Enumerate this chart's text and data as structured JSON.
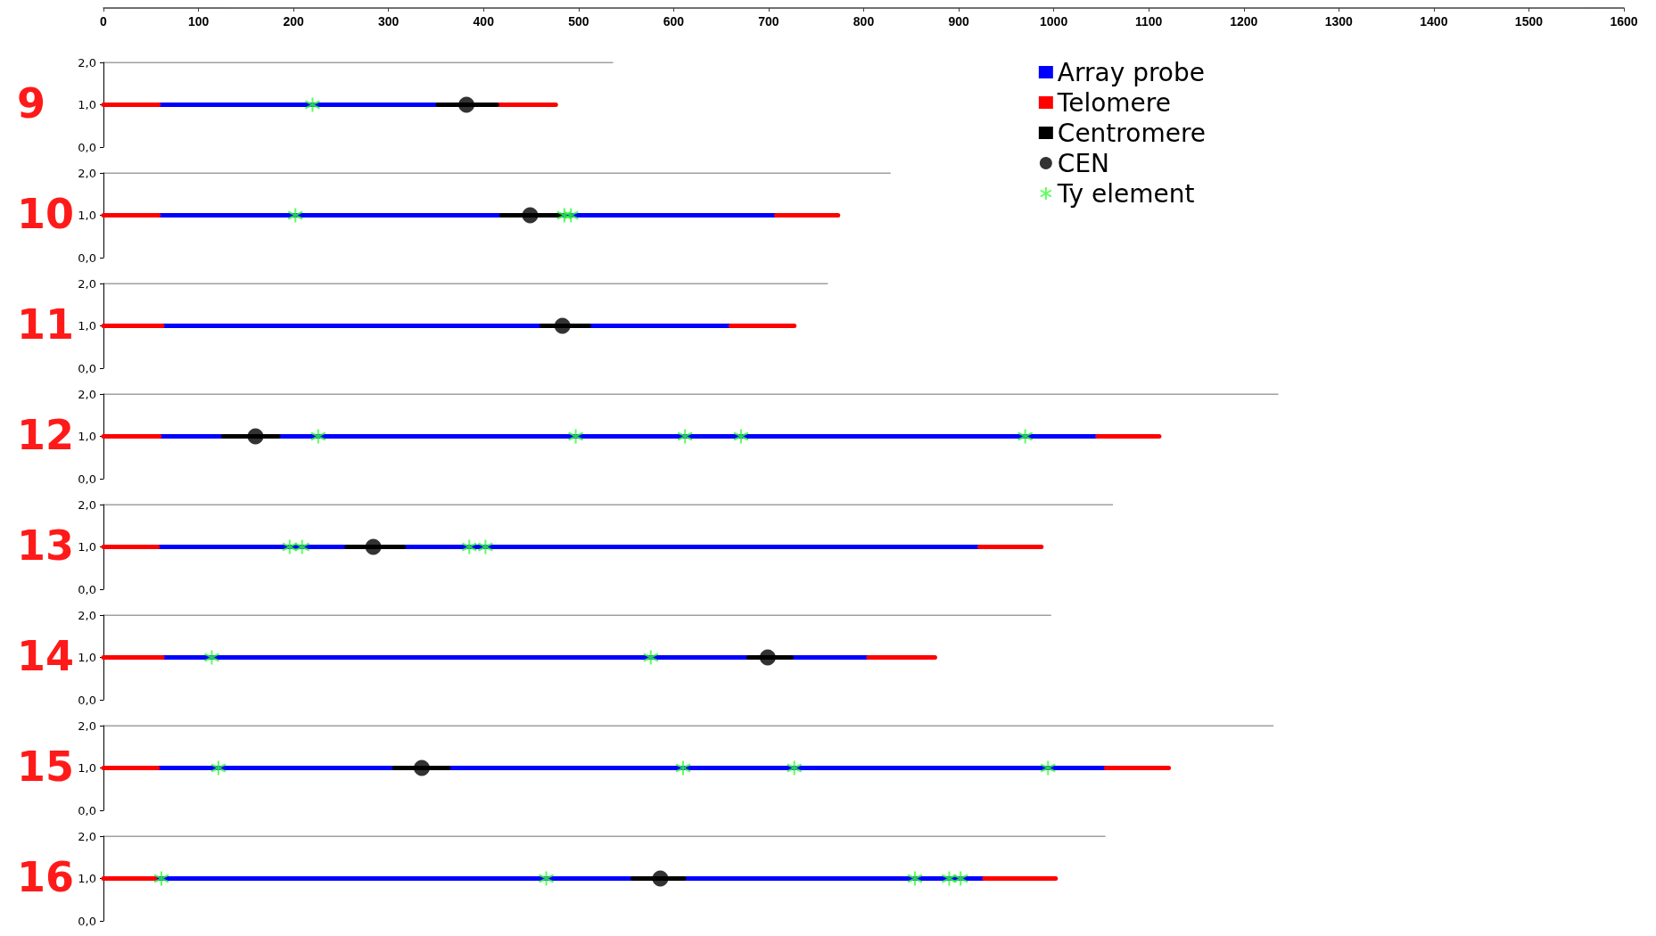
{
  "chart_data": [
    {
      "type": "line",
      "title": "9",
      "xlim": [
        0,
        1600
      ],
      "xticks": [
        0,
        100,
        200,
        300,
        400,
        500,
        600,
        700,
        800,
        900,
        1000,
        1100,
        1200,
        1300,
        1400,
        1500,
        1600
      ],
      "ylim": [
        0,
        2
      ],
      "yticks": [
        {
          "value": 0,
          "label": "0,0"
        },
        {
          "value": 1,
          "label": "1,0"
        },
        {
          "value": 2,
          "label": "2,0"
        }
      ],
      "grid": false,
      "legend": "bottom right",
      "marker": "none",
      "series": [
        {
          "name": "Array probe",
          "color": "#0000ff",
          "x": [
            58,
            352
          ],
          "values": [
            1,
            1
          ]
        },
        {
          "name": "Telomere",
          "color": "#ff0000",
          "x": [
            0,
            58
          ],
          "values": [
            1,
            1
          ]
        },
        {
          "color": "#ff0000",
          "x": [
            414,
            476
          ],
          "values": [
            1,
            1
          ]
        },
        {
          "name": "Centromere",
          "color": "#000000",
          "x": [
            352,
            414
          ],
          "values": [
            1,
            1
          ]
        },
        {
          "name": "CEN",
          "type": "scatter",
          "marker": "circle",
          "color": "#000000",
          "x": [
            382
          ],
          "values": [
            1
          ]
        },
        {
          "name": "Ty element",
          "type": "scatter",
          "marker": "cross",
          "color": "#33ff33",
          "x": [
            220
          ],
          "values": [
            1
          ]
        },
        {
          "color": "#404040",
          "x": [
            0,
            536
          ],
          "values": [
            2,
            2
          ]
        }
      ]
    },
    {
      "type": "line",
      "title": "10",
      "xlim": [
        0,
        1600
      ],
      "xticks": [
        0,
        100,
        200,
        300,
        400,
        500,
        600,
        700,
        800,
        900,
        1000,
        1100,
        1200,
        1300,
        1400,
        1500,
        1600
      ],
      "ylim": [
        0,
        2
      ],
      "yticks": [
        {
          "value": 0,
          "label": "0,0"
        },
        {
          "value": 1,
          "label": "1,0"
        },
        {
          "value": 2,
          "label": "2,0"
        }
      ],
      "tick_labels": "y",
      "grid": false,
      "marker": "none",
      "series": [
        {
          "color": "#0000ff",
          "x": [
            58,
            419
          ],
          "values": [
            1,
            1
          ]
        },
        {
          "color": "#0000ff",
          "x": [
            480,
            708
          ],
          "values": [
            1,
            1
          ]
        },
        {
          "color": "#ff0000",
          "x": [
            0,
            58
          ],
          "values": [
            1,
            1
          ]
        },
        {
          "color": "#ff0000",
          "x": [
            708,
            773
          ],
          "values": [
            1,
            1
          ]
        },
        {
          "color": "#000000",
          "x": [
            419,
            480
          ],
          "values": [
            1,
            1
          ]
        },
        {
          "type": "scatter",
          "marker": "circle",
          "color": "#000000",
          "x": [
            449
          ],
          "values": [
            1
          ]
        },
        {
          "type": "scatter",
          "marker": "cross",
          "color": "#33ff33",
          "x": [
            202,
            485,
            492
          ],
          "values": [
            1,
            1,
            1
          ]
        },
        {
          "color": "#404040",
          "x": [
            0,
            828
          ],
          "values": [
            2,
            2
          ]
        }
      ]
    },
    {
      "type": "line",
      "title": "11",
      "xlim": [
        0,
        1600
      ],
      "xticks": [
        0,
        100,
        200,
        300,
        400,
        500,
        600,
        700,
        800,
        900,
        1000,
        1100,
        1200,
        1300,
        1400,
        1500,
        1600
      ],
      "ylim": [
        0,
        2
      ],
      "yticks": [
        {
          "value": 0,
          "label": "0,0"
        },
        {
          "value": 1,
          "label": "1,0"
        },
        {
          "value": 2,
          "label": "2,0"
        }
      ],
      "tick_labels": "y",
      "grid": false,
      "marker": "none",
      "series": [
        {
          "color": "#0000ff",
          "x": [
            62,
            461
          ],
          "values": [
            1,
            1
          ]
        },
        {
          "color": "#0000ff",
          "x": [
            511,
            660
          ],
          "values": [
            1,
            1
          ]
        },
        {
          "color": "#ff0000",
          "x": [
            0,
            62
          ],
          "values": [
            1,
            1
          ]
        },
        {
          "color": "#ff0000",
          "x": [
            660,
            727
          ],
          "values": [
            1,
            1
          ]
        },
        {
          "color": "#000000",
          "x": [
            461,
            511
          ],
          "values": [
            1,
            1
          ]
        },
        {
          "type": "scatter",
          "marker": "circle",
          "color": "#000000",
          "x": [
            483
          ],
          "values": [
            1
          ]
        },
        {
          "color": "#404040",
          "x": [
            0,
            762
          ],
          "values": [
            2,
            2
          ]
        }
      ]
    },
    {
      "type": "line",
      "title": "12",
      "xlim": [
        0,
        1600
      ],
      "xticks": [
        0,
        100,
        200,
        300,
        400,
        500,
        600,
        700,
        800,
        900,
        1000,
        1100,
        1200,
        1300,
        1400,
        1500,
        1600
      ],
      "ylim": [
        0,
        2
      ],
      "yticks": [
        {
          "value": 0,
          "label": "0,0"
        },
        {
          "value": 1,
          "label": "1,0"
        },
        {
          "value": 2,
          "label": "2,0"
        }
      ],
      "tick_labels": "y",
      "grid": false,
      "marker": "none",
      "series": [
        {
          "color": "#0000ff",
          "x": [
            59,
            126
          ],
          "values": [
            1,
            1
          ]
        },
        {
          "color": "#0000ff",
          "x": [
            184,
            1046
          ],
          "values": [
            1,
            1
          ]
        },
        {
          "color": "#ff0000",
          "x": [
            0,
            59
          ],
          "values": [
            1,
            1
          ]
        },
        {
          "color": "#ff0000",
          "x": [
            1046,
            1111
          ],
          "values": [
            1,
            1
          ]
        },
        {
          "color": "#000000",
          "x": [
            126,
            184
          ],
          "values": [
            1,
            1
          ]
        },
        {
          "type": "scatter",
          "marker": "circle",
          "color": "#000000",
          "x": [
            160
          ],
          "values": [
            1
          ]
        },
        {
          "type": "scatter",
          "marker": "cross",
          "color": "#33ff33",
          "x": [
            226,
            497,
            612,
            671,
            970
          ],
          "values": [
            1,
            1,
            1,
            1,
            1
          ]
        },
        {
          "color": "#404040",
          "x": [
            0,
            1236
          ],
          "values": [
            2,
            2
          ]
        }
      ]
    },
    {
      "type": "line",
      "title": "13",
      "xlim": [
        0,
        1600
      ],
      "xticks": [
        0,
        100,
        200,
        300,
        400,
        500,
        600,
        700,
        800,
        900,
        1000,
        1100,
        1200,
        1300,
        1400,
        1500,
        1600
      ],
      "ylim": [
        0,
        2
      ],
      "yticks": [
        {
          "value": 0,
          "label": "0,0"
        },
        {
          "value": 1,
          "label": "1,0"
        },
        {
          "value": 2,
          "label": "2,0"
        }
      ],
      "tick_labels": "y",
      "grid": false,
      "marker": "none",
      "series": [
        {
          "color": "#0000ff",
          "x": [
            57,
            256
          ],
          "values": [
            1,
            1
          ]
        },
        {
          "color": "#0000ff",
          "x": [
            316,
            922
          ],
          "values": [
            1,
            1
          ]
        },
        {
          "color": "#ff0000",
          "x": [
            0,
            57
          ],
          "values": [
            1,
            1
          ]
        },
        {
          "color": "#ff0000",
          "x": [
            922,
            987
          ],
          "values": [
            1,
            1
          ]
        },
        {
          "color": "#000000",
          "x": [
            256,
            316
          ],
          "values": [
            1,
            1
          ]
        },
        {
          "type": "scatter",
          "marker": "circle",
          "color": "#000000",
          "x": [
            284
          ],
          "values": [
            1
          ]
        },
        {
          "type": "scatter",
          "marker": "cross",
          "color": "#33ff33",
          "x": [
            196,
            209,
            385,
            402
          ],
          "values": [
            1,
            1,
            1,
            1
          ]
        },
        {
          "color": "#404040",
          "x": [
            0,
            1062
          ],
          "values": [
            2,
            2
          ]
        }
      ]
    },
    {
      "type": "line",
      "title": "14",
      "xlim": [
        0,
        1600
      ],
      "xticks": [
        0,
        100,
        200,
        300,
        400,
        500,
        600,
        700,
        800,
        900,
        1000,
        1100,
        1200,
        1300,
        1400,
        1500,
        1600
      ],
      "ylim": [
        0,
        2
      ],
      "yticks": [
        {
          "value": 0,
          "label": "0,0"
        },
        {
          "value": 1,
          "label": "1,0"
        },
        {
          "value": 2,
          "label": "2,0"
        }
      ],
      "tick_labels": "y",
      "grid": false,
      "marker": "none",
      "series": [
        {
          "color": "#0000ff",
          "x": [
            62,
            679
          ],
          "values": [
            1,
            1
          ]
        },
        {
          "color": "#0000ff",
          "x": [
            724,
            805
          ],
          "values": [
            1,
            1
          ]
        },
        {
          "color": "#ff0000",
          "x": [
            0,
            62
          ],
          "values": [
            1,
            1
          ]
        },
        {
          "color": "#ff0000",
          "x": [
            805,
            875
          ],
          "values": [
            1,
            1
          ]
        },
        {
          "color": "#000000",
          "x": [
            679,
            724
          ],
          "values": [
            1,
            1
          ]
        },
        {
          "type": "scatter",
          "marker": "circle",
          "color": "#000000",
          "x": [
            699
          ],
          "values": [
            1
          ]
        },
        {
          "type": "scatter",
          "marker": "cross",
          "color": "#33ff33",
          "x": [
            114,
            576
          ],
          "values": [
            1,
            1
          ]
        },
        {
          "color": "#404040",
          "x": [
            0,
            997
          ],
          "values": [
            2,
            2
          ]
        }
      ]
    },
    {
      "type": "line",
      "title": "15",
      "xlim": [
        0,
        1600
      ],
      "xticks": [
        0,
        100,
        200,
        300,
        400,
        500,
        600,
        700,
        800,
        900,
        1000,
        1100,
        1200,
        1300,
        1400,
        1500,
        1600
      ],
      "ylim": [
        0,
        2
      ],
      "yticks": [
        {
          "value": 0,
          "label": "0,0"
        },
        {
          "value": 1,
          "label": "1,0"
        },
        {
          "value": 2,
          "label": "2,0"
        }
      ],
      "tick_labels": "y",
      "grid": false,
      "marker": "none",
      "series": [
        {
          "color": "#0000ff",
          "x": [
            57,
            306
          ],
          "values": [
            1,
            1
          ]
        },
        {
          "color": "#0000ff",
          "x": [
            363,
            1055
          ],
          "values": [
            1,
            1
          ]
        },
        {
          "color": "#ff0000",
          "x": [
            0,
            57
          ],
          "values": [
            1,
            1
          ]
        },
        {
          "color": "#ff0000",
          "x": [
            1055,
            1121
          ],
          "values": [
            1,
            1
          ]
        },
        {
          "color": "#000000",
          "x": [
            306,
            363
          ],
          "values": [
            1,
            1
          ]
        },
        {
          "type": "scatter",
          "marker": "circle",
          "color": "#000000",
          "x": [
            335
          ],
          "values": [
            1
          ]
        },
        {
          "type": "scatter",
          "marker": "cross",
          "color": "#33ff33",
          "x": [
            121,
            610,
            727,
            994
          ],
          "values": [
            1,
            1,
            1,
            1
          ]
        },
        {
          "color": "#404040",
          "x": [
            0,
            1231
          ],
          "values": [
            2,
            2
          ]
        }
      ]
    },
    {
      "type": "line",
      "title": "16",
      "xlim": [
        0,
        1600
      ],
      "xticks": [
        0,
        100,
        200,
        300,
        400,
        500,
        600,
        700,
        800,
        900,
        1000,
        1100,
        1200,
        1300,
        1400,
        1500,
        1600
      ],
      "ylim": [
        0,
        2
      ],
      "yticks": [
        {
          "value": 0,
          "label": "0,0"
        },
        {
          "value": 1,
          "label": "1,0"
        },
        {
          "value": 2,
          "label": "2,0"
        }
      ],
      "tick_labels": "y",
      "grid": false,
      "marker": "none",
      "series": [
        {
          "color": "#0000ff",
          "x": [
            54,
            557
          ],
          "values": [
            1,
            1
          ]
        },
        {
          "color": "#0000ff",
          "x": [
            611,
            927
          ],
          "values": [
            1,
            1
          ]
        },
        {
          "color": "#ff0000",
          "x": [
            0,
            54
          ],
          "values": [
            1,
            1
          ]
        },
        {
          "color": "#ff0000",
          "x": [
            927,
            1002
          ],
          "values": [
            1,
            1
          ]
        },
        {
          "color": "#000000",
          "x": [
            557,
            611
          ],
          "values": [
            1,
            1
          ]
        },
        {
          "type": "scatter",
          "marker": "circle",
          "color": "#000000",
          "x": [
            586
          ],
          "values": [
            1
          ]
        },
        {
          "type": "scatter",
          "marker": "cross",
          "color": "#33ff33",
          "x": [
            61,
            466,
            854,
            890,
            902
          ],
          "values": [
            1,
            1,
            1,
            1,
            1
          ]
        },
        {
          "color": "#404040",
          "x": [
            0,
            1054
          ],
          "values": [
            2,
            2
          ]
        }
      ]
    }
  ]
}
